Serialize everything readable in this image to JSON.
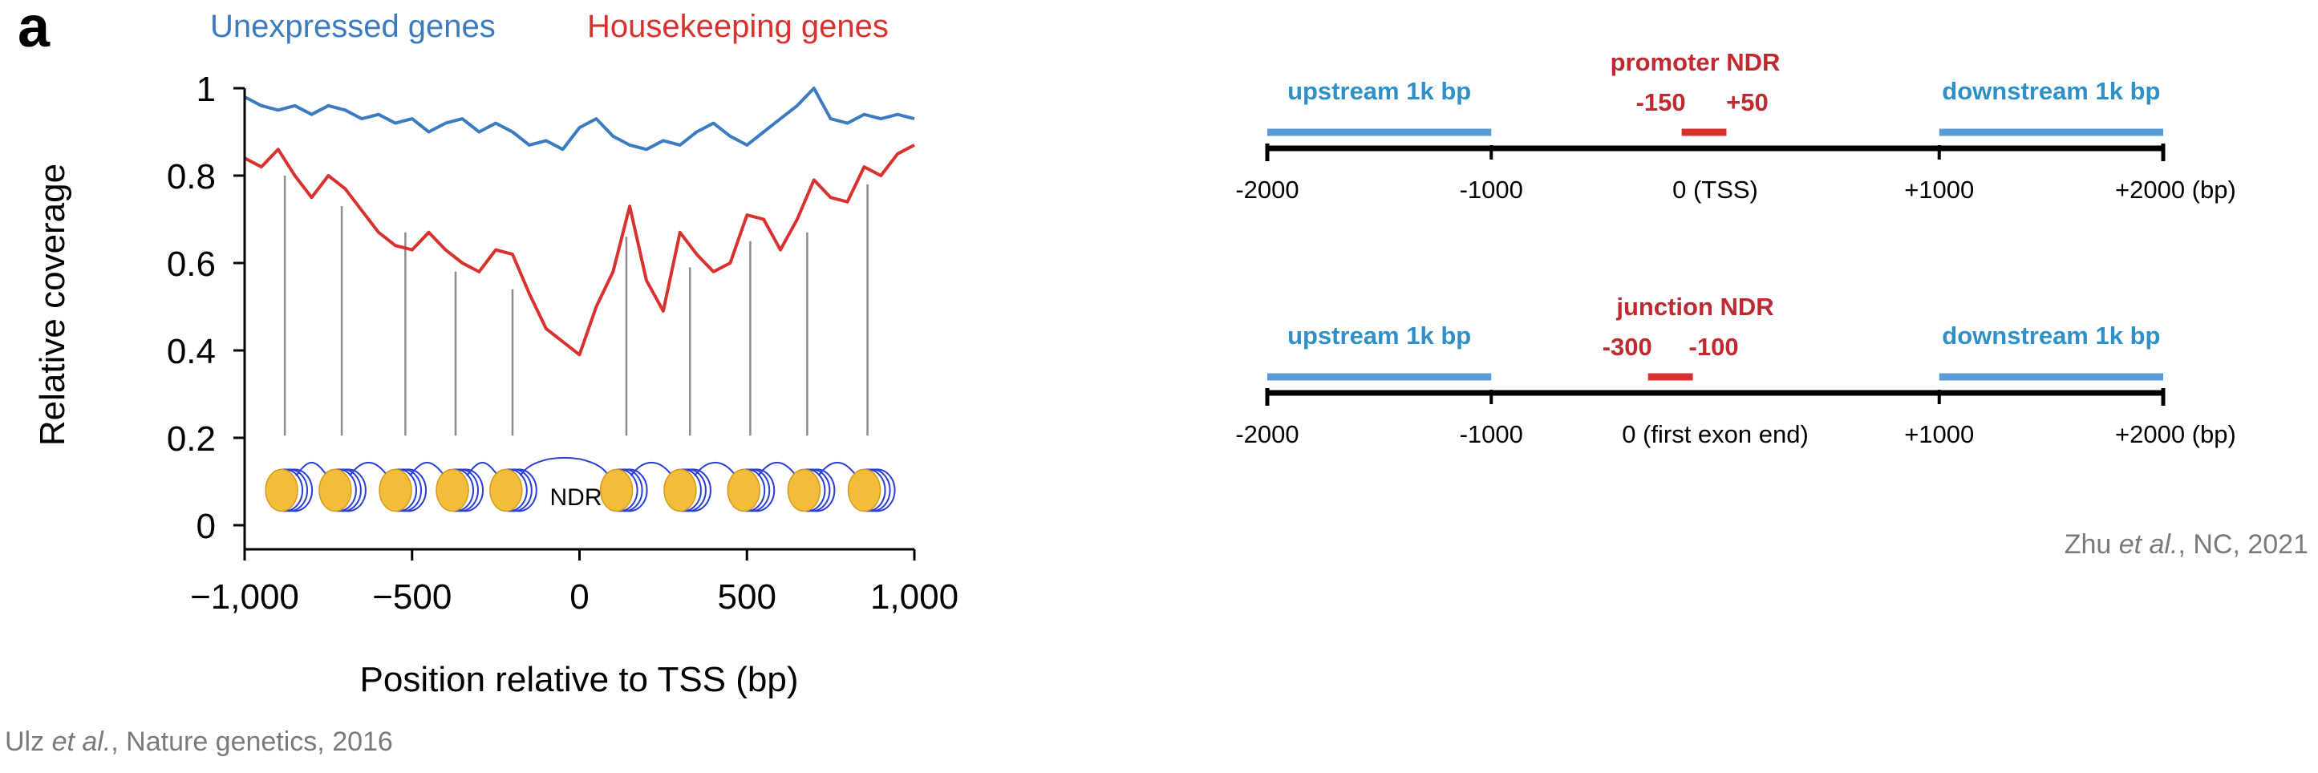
{
  "chart_data": {
    "type": "line",
    "panel_letter": "a",
    "xlabel": "Position relative to TSS (bp)",
    "ylabel": "Relative coverage",
    "xlim": [
      -1000,
      1000
    ],
    "ylim": [
      0,
      1
    ],
    "xticks": [
      -1000,
      -500,
      0,
      500,
      1000
    ],
    "xtick_labels": [
      "−1,000",
      "−500",
      "0",
      "500",
      "1,000"
    ],
    "yticks": [
      0,
      0.2,
      0.4,
      0.6,
      0.8,
      1
    ],
    "ytick_labels": [
      "0",
      "0.2",
      "0.4",
      "0.6",
      "0.8",
      "1"
    ],
    "legend_position": "top",
    "series": [
      {
        "name": "Unexpressed genes",
        "color": "#3b7bbf",
        "x": [
          -1000,
          -950,
          -900,
          -850,
          -800,
          -750,
          -700,
          -650,
          -600,
          -550,
          -500,
          -450,
          -400,
          -350,
          -300,
          -250,
          -200,
          -150,
          -100,
          -50,
          0,
          50,
          100,
          150,
          200,
          250,
          300,
          350,
          400,
          450,
          500,
          550,
          600,
          650,
          700,
          750,
          800,
          850,
          900,
          950,
          1000
        ],
        "values": [
          0.98,
          0.96,
          0.95,
          0.96,
          0.94,
          0.96,
          0.95,
          0.93,
          0.94,
          0.92,
          0.93,
          0.9,
          0.92,
          0.93,
          0.9,
          0.92,
          0.9,
          0.87,
          0.88,
          0.86,
          0.91,
          0.93,
          0.89,
          0.87,
          0.86,
          0.88,
          0.87,
          0.9,
          0.92,
          0.89,
          0.87,
          0.9,
          0.93,
          0.96,
          1.0,
          0.93,
          0.92,
          0.94,
          0.93,
          0.94,
          0.93
        ]
      },
      {
        "name": "Housekeeping genes",
        "color": "#d9312e",
        "x": [
          -1000,
          -950,
          -900,
          -850,
          -800,
          -750,
          -700,
          -650,
          -600,
          -550,
          -500,
          -450,
          -400,
          -350,
          -300,
          -250,
          -200,
          -150,
          -100,
          -50,
          0,
          50,
          100,
          150,
          200,
          250,
          300,
          350,
          400,
          450,
          500,
          550,
          600,
          650,
          700,
          750,
          800,
          850,
          900,
          950,
          1000
        ],
        "values": [
          0.84,
          0.82,
          0.86,
          0.8,
          0.75,
          0.8,
          0.77,
          0.72,
          0.67,
          0.64,
          0.63,
          0.67,
          0.63,
          0.6,
          0.58,
          0.63,
          0.62,
          0.53,
          0.45,
          0.42,
          0.39,
          0.5,
          0.58,
          0.73,
          0.56,
          0.49,
          0.67,
          0.62,
          0.58,
          0.6,
          0.71,
          0.7,
          0.63,
          0.7,
          0.79,
          0.75,
          0.74,
          0.82,
          0.8,
          0.85,
          0.87
        ]
      }
    ],
    "nucleosome_lines_x": [
      -880,
      -710,
      -520,
      -370,
      -200,
      140,
      330,
      510,
      680,
      860
    ],
    "nucleosome_lines_top": [
      0.8,
      0.73,
      0.67,
      0.58,
      0.54,
      0.66,
      0.59,
      0.65,
      0.67,
      0.78
    ],
    "nucleosome_x": [
      -880,
      -720,
      -540,
      -370,
      -210,
      120,
      310,
      500,
      680,
      860
    ],
    "annotation_ndr": "NDR"
  },
  "diagram": {
    "rows": [
      {
        "region_label": "promoter NDR",
        "region_bounds": [
          "-150",
          "+50"
        ],
        "upstream_label": "upstream 1k bp",
        "downstream_label": "downstream 1k bp",
        "ticks": [
          "-2000",
          "-1000",
          "0 (TSS)",
          "+1000",
          "+2000 (bp)"
        ],
        "region_start": -150,
        "region_end": 50
      },
      {
        "region_label": "junction NDR",
        "region_bounds": [
          "-300",
          "-100"
        ],
        "upstream_label": "upstream 1k bp",
        "downstream_label": "downstream 1k bp",
        "ticks": [
          "-2000",
          "-1000",
          "0 (first exon end)",
          "+1000",
          "+2000 (bp)"
        ],
        "region_start": -300,
        "region_end": -100
      }
    ],
    "flank_color": "#5b9bd5",
    "flank_text_color": "#2f90c8",
    "region_color": "#d9312e",
    "region_text_color": "#c0292f"
  },
  "captions": {
    "left": {
      "author": "Ulz",
      "etal": "et al.",
      "rest": ", Nature genetics, 2016"
    },
    "right": {
      "author": "Zhu",
      "etal": "et al.",
      "rest": ", NC, 2021"
    }
  }
}
